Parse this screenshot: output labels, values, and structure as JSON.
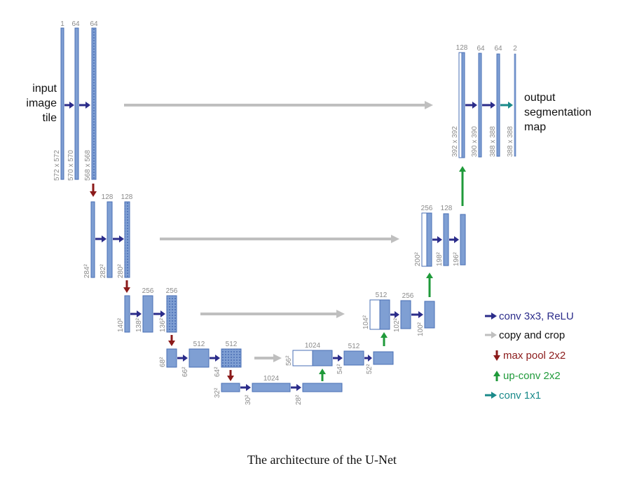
{
  "title": "U-Net architecture",
  "caption": "The architecture of the U-Net",
  "colors": {
    "block_fill": "#7f9fd3",
    "block_stroke": "#4a6fb5",
    "conv_arrow": "#2b2c8a",
    "copy_arrow": "#bfbfbf",
    "pool_arrow": "#8b1a1a",
    "upconv_arrow": "#1f9a3a",
    "conv1x1_arrow": "#1a8a8a"
  },
  "input_label": [
    "input",
    "image",
    "tile"
  ],
  "output_label": [
    "output",
    "segmentation",
    "map"
  ],
  "channels": {
    "l1_in": "1",
    "l1_a": "64",
    "l1_b": "64",
    "l2_a": "128",
    "l2_b": "128",
    "l3_a": "256",
    "l3_b": "256",
    "l4_a": "512",
    "l4_b": "512",
    "l5_a": "1024",
    "d4_a": "1024",
    "d4_b": "512",
    "d3_a": "512",
    "d3_b": "256",
    "d2_a": "256",
    "d2_b": "128",
    "d1_a": "128",
    "d1_b": "64",
    "d1_c": "64",
    "d1_out": "2"
  },
  "sizes": {
    "l1_in": "572 x 572",
    "l1_a": "570 x 570",
    "l1_b": "568 x 568",
    "l2_in": "284²",
    "l2_a": "282²",
    "l2_b": "280²",
    "l3_in": "140²",
    "l3_a": "138²",
    "l3_b": "136²",
    "l4_in": "68²",
    "l4_a": "66²",
    "l4_b": "64²",
    "l5_in": "32²",
    "l5_a": "30²",
    "l5_b": "28²",
    "d4_in": "56²",
    "d4_a": "54²",
    "d4_b": "52²",
    "d3_in": "104²",
    "d3_a": "102²",
    "d3_b": "100²",
    "d2_in": "200²",
    "d2_a": "198²",
    "d2_b": "196²",
    "d1_in": "392 x 392",
    "d1_a": "390 x 390",
    "d1_b": "388 x 388",
    "d1_out": "388 x 388"
  },
  "legend": [
    {
      "label": "conv 3x3, ReLU",
      "color": "#2b2c8a",
      "arrow": "right"
    },
    {
      "label": "copy and crop",
      "color": "#bfbfbf",
      "arrow": "right"
    },
    {
      "label": "max pool 2x2",
      "color": "#8b1a1a",
      "arrow": "down"
    },
    {
      "label": "up-conv 2x2",
      "color": "#1f9a3a",
      "arrow": "up"
    },
    {
      "label": "conv 1x1",
      "color": "#1a8a8a",
      "arrow": "right"
    }
  ]
}
